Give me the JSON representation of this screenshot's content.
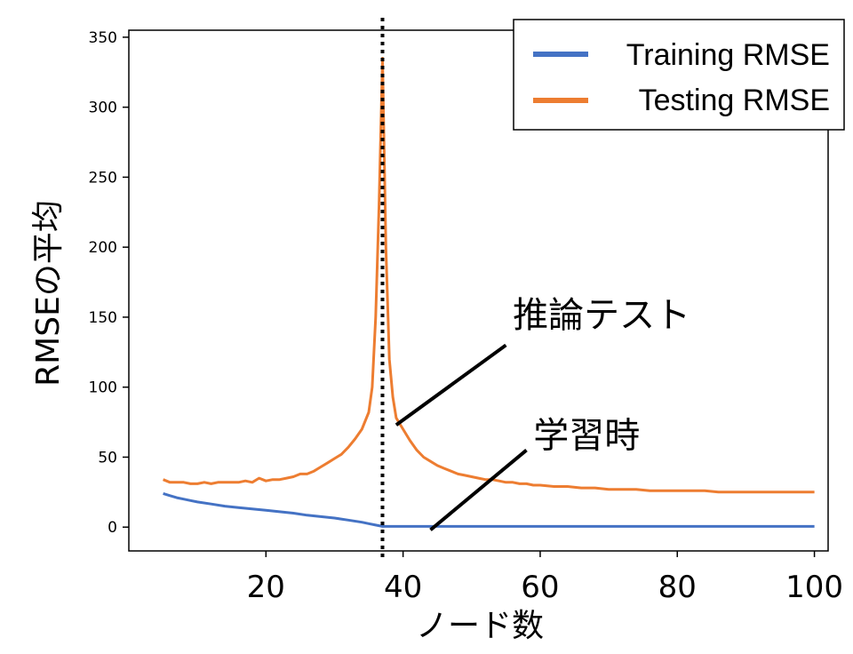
{
  "chart_data": {
    "type": "line",
    "xlabel": "ノード数",
    "ylabel": "RMSEの平均",
    "xlim": [
      0,
      102
    ],
    "ylim": [
      -17,
      355
    ],
    "xticks": [
      20,
      40,
      60,
      80,
      100
    ],
    "yticks": [
      0,
      50,
      100,
      150,
      200,
      250,
      300,
      350
    ],
    "grid": false,
    "legend": "top-right",
    "vline": {
      "x": 37,
      "style": "dotted",
      "color": "#000000"
    },
    "series": [
      {
        "name": "Training RMSE",
        "color": "#4472c4",
        "x": [
          5,
          6,
          7,
          8,
          9,
          10,
          12,
          14,
          16,
          18,
          20,
          22,
          24,
          26,
          28,
          30,
          32,
          34,
          35,
          36,
          37,
          38,
          40,
          45,
          50,
          55,
          60,
          65,
          70,
          75,
          80,
          85,
          90,
          95,
          100
        ],
        "y": [
          24,
          22.5,
          21,
          20,
          19,
          18,
          16.5,
          15,
          14,
          13,
          12,
          11,
          10,
          8.5,
          7.5,
          6.5,
          5,
          3.5,
          2.5,
          1.5,
          0.5,
          0.5,
          0.5,
          0.5,
          0.5,
          0.5,
          0.5,
          0.5,
          0.5,
          0.5,
          0.5,
          0.5,
          0.5,
          0.5,
          0.5
        ]
      },
      {
        "name": "Testing RMSE",
        "color": "#ed7d31",
        "x": [
          5,
          6,
          7,
          8,
          9,
          10,
          11,
          12,
          13,
          14,
          15,
          16,
          17,
          18,
          19,
          20,
          21,
          22,
          23,
          24,
          25,
          26,
          27,
          28,
          29,
          30,
          31,
          32,
          33,
          34,
          35,
          35.5,
          36,
          36.5,
          37,
          37.5,
          38,
          38.5,
          39,
          40,
          41,
          42,
          43,
          44,
          45,
          46,
          47,
          48,
          49,
          50,
          51,
          52,
          53,
          54,
          55,
          56,
          57,
          58,
          59,
          60,
          62,
          64,
          66,
          68,
          70,
          72,
          74,
          76,
          78,
          80,
          82,
          84,
          86,
          88,
          90,
          92,
          94,
          96,
          98,
          100
        ],
        "y": [
          34,
          32,
          32,
          32,
          31,
          31,
          32,
          31,
          32,
          32,
          32,
          32,
          33,
          32,
          35,
          33,
          34,
          34,
          35,
          36,
          38,
          38,
          40,
          43,
          46,
          49,
          52,
          57,
          63,
          70,
          82,
          100,
          150,
          230,
          335,
          200,
          120,
          93,
          78,
          70,
          62,
          55,
          50,
          47,
          44,
          42,
          40,
          38,
          37,
          36,
          35,
          34,
          34,
          33,
          32,
          32,
          31,
          31,
          30,
          30,
          29,
          29,
          28,
          28,
          27,
          27,
          27,
          26,
          26,
          26,
          26,
          26,
          25,
          25,
          25,
          25,
          25,
          25,
          25,
          25
        ]
      }
    ],
    "annotations": [
      {
        "text": "推論テスト",
        "x": 56,
        "y": 143,
        "arrow_from": [
          55,
          130
        ],
        "arrow_to": [
          39,
          73
        ]
      },
      {
        "text": "学習時",
        "x": 59,
        "y": 57,
        "arrow_from": [
          58,
          55
        ],
        "arrow_to": [
          44,
          -2
        ]
      }
    ]
  }
}
